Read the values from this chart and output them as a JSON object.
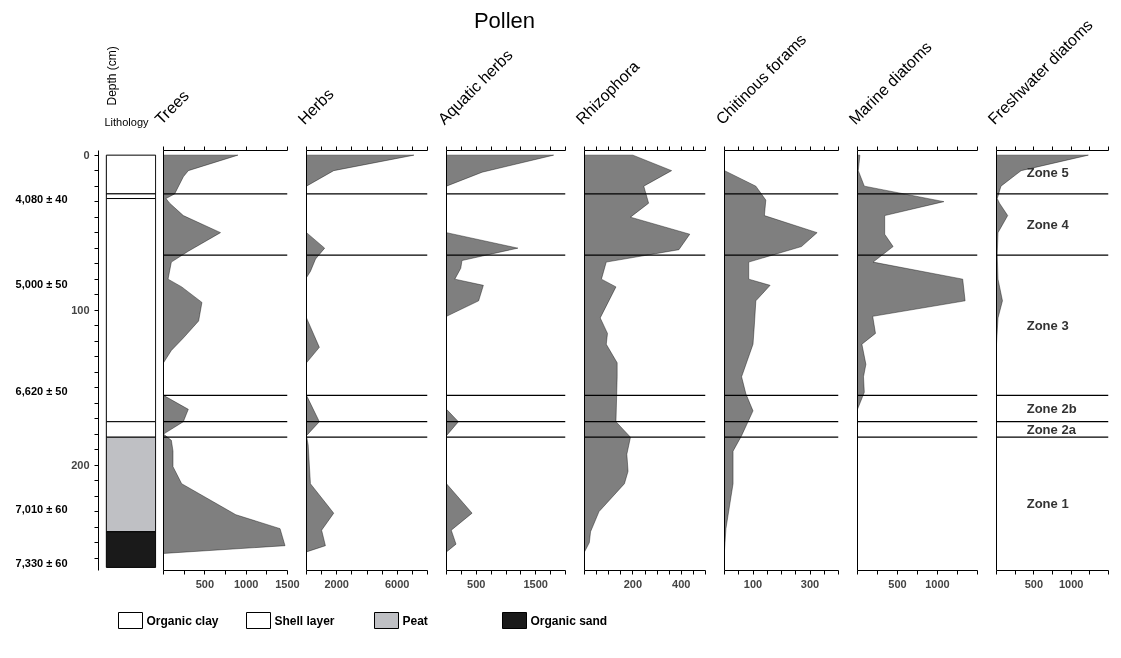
{
  "chart_data": [
    {
      "type": "bar",
      "stacked": true,
      "title": "Lithology",
      "ylabel": "Depth (cm)",
      "categories": [
        null
      ],
      "ylim": [
        268,
        -3
      ],
      "yticks": [
        0,
        {
          "value": 10,
          "label": null
        },
        {
          "value": 20,
          "label": null
        },
        {
          "value": 30,
          "label": null
        },
        {
          "value": 40,
          "label": null
        },
        {
          "value": 50,
          "label": null
        },
        {
          "value": 60,
          "label": null
        },
        {
          "value": 70,
          "label": null
        },
        {
          "value": 80,
          "label": null
        },
        {
          "value": 90,
          "label": null
        },
        100,
        {
          "value": 110,
          "label": null
        },
        {
          "value": 120,
          "label": null
        },
        {
          "value": 130,
          "label": null
        },
        {
          "value": 140,
          "label": null
        },
        {
          "value": 150,
          "label": null
        },
        {
          "value": 160,
          "label": null
        },
        {
          "value": 170,
          "label": null
        },
        {
          "value": 180,
          "label": null
        },
        {
          "value": 190,
          "label": null
        },
        200,
        {
          "value": 210,
          "label": null
        },
        {
          "value": 220,
          "label": null
        },
        {
          "value": 230,
          "label": null
        },
        {
          "value": 240,
          "label": null
        },
        {
          "value": 250,
          "label": null
        },
        {
          "value": 260,
          "label": null
        }
      ],
      "tick_labels": "y",
      "legend": "bottom",
      "series": [
        {
          "name": "Organic clay",
          "color": "#ffffff",
          "values": [
            25
          ]
        },
        {
          "name": "Shell layer",
          "color": "#ffffff",
          "values": [
            3
          ]
        },
        {
          "color": "#ffffff",
          "values": [
            144
          ]
        },
        {
          "color": "#ffffff",
          "values": [
            10
          ]
        },
        {
          "name": "Peat",
          "color": "#bfc0c4",
          "values": [
            61
          ]
        },
        {
          "name": "Organic sand",
          "color": "#1a1a1a",
          "values": [
            23
          ]
        }
      ],
      "annotations": [
        "4,080 ± 40",
        "5,000 ± 50",
        "6,620 ± 50",
        "7,010 ± 60",
        "7,330 ± 60"
      ]
    },
    {
      "type": "area",
      "orientation": "horizontal",
      "title": "Trees",
      "color": "#7f7f7f",
      "x": [
        0,
        10,
        14,
        25,
        28,
        31,
        39,
        50,
        62,
        69,
        80,
        85,
        95,
        107,
        118,
        126,
        134,
        155,
        164,
        172,
        180,
        184,
        191,
        201,
        212,
        232,
        241,
        252,
        257
      ],
      "values": [
        900,
        300,
        240,
        135,
        30,
        75,
        240,
        690,
        300,
        95,
        55,
        220,
        465,
        425,
        240,
        95,
        0,
        0,
        300,
        240,
        0,
        95,
        115,
        115,
        220,
        875,
        1410,
        1470,
        0
      ],
      "xlim": [
        0,
        1500
      ],
      "xticks": [
        {
          "value": 0,
          "label": null
        },
        {
          "value": 250,
          "label": null
        },
        500,
        {
          "value": 750,
          "label": null
        },
        1000,
        {
          "value": 1250,
          "label": null
        },
        1500
      ],
      "ylim": [
        268,
        -3
      ],
      "tick_labels": "x",
      "ref_lines": [
        {
          "axis": "y",
          "value": 25
        },
        {
          "axis": "y",
          "value": 64.5
        },
        {
          "axis": "y",
          "value": 155
        },
        {
          "axis": "y",
          "value": 172
        },
        {
          "axis": "y",
          "value": 182
        }
      ]
    },
    {
      "type": "area",
      "orientation": "horizontal",
      "title": "Herbs",
      "color": "#7f7f7f",
      "x": [
        0,
        10,
        20,
        50,
        60,
        67,
        75,
        79,
        105,
        124,
        134,
        155,
        172,
        181,
        187,
        212,
        231,
        242,
        252,
        256
      ],
      "values": [
        7100,
        1800,
        0,
        0,
        1200,
        600,
        260,
        0,
        0,
        850,
        0,
        0,
        850,
        0,
        110,
        260,
        1800,
        1000,
        1250,
        0
      ],
      "xlim": [
        0,
        8000
      ],
      "xticks": [
        {
          "value": 0,
          "label": null
        },
        {
          "value": 1000,
          "label": null
        },
        2000,
        {
          "value": 3000,
          "label": null
        },
        {
          "value": 4000,
          "label": null
        },
        {
          "value": 5000,
          "label": null
        },
        6000,
        {
          "value": 7000,
          "label": null
        },
        {
          "value": 8000,
          "label": null
        }
      ],
      "ylim": [
        268,
        -3
      ],
      "tick_labels": "x",
      "ref_lines": [
        {
          "axis": "y",
          "value": 25
        },
        {
          "axis": "y",
          "value": 64.5
        },
        {
          "axis": "y",
          "value": 155
        },
        {
          "axis": "y",
          "value": 172
        },
        {
          "axis": "y",
          "value": 182
        }
      ]
    },
    {
      "type": "area",
      "orientation": "horizontal",
      "title": "Aquatic herbs",
      "subtitle": "Pollen",
      "color": "#7f7f7f",
      "x": [
        0,
        11,
        20,
        50,
        60,
        68,
        73,
        80,
        84,
        94,
        104,
        164,
        172,
        181,
        212,
        231,
        242,
        251,
        256
      ],
      "values": [
        1800,
        600,
        0,
        0,
        1200,
        260,
        240,
        140,
        620,
        540,
        0,
        0,
        200,
        0,
        0,
        430,
        80,
        160,
        0
      ],
      "xlim": [
        0,
        2000
      ],
      "xticks": [
        {
          "value": 0,
          "label": null
        },
        {
          "value": 250,
          "label": null
        },
        500,
        {
          "value": 750,
          "label": null
        },
        {
          "value": 1000,
          "label": null
        },
        {
          "value": 1250,
          "label": null
        },
        1500,
        {
          "value": 1750,
          "label": null
        },
        {
          "value": 2000,
          "label": null
        }
      ],
      "ylim": [
        268,
        -3
      ],
      "tick_labels": "x",
      "ref_lines": [
        {
          "axis": "y",
          "value": 25
        },
        {
          "axis": "y",
          "value": 64.5
        },
        {
          "axis": "y",
          "value": 155
        },
        {
          "axis": "y",
          "value": 172
        },
        {
          "axis": "y",
          "value": 182
        }
      ]
    },
    {
      "type": "area",
      "orientation": "horizontal",
      "title": "Rhizophora",
      "color": "#7f7f7f",
      "x": [
        0,
        10,
        20,
        31,
        40,
        51,
        61,
        69,
        80,
        85,
        105,
        115,
        122,
        134,
        143,
        172,
        182,
        193,
        204,
        212,
        230,
        243,
        250,
        256
      ],
      "values": [
        200,
        360,
        245,
        265,
        190,
        435,
        390,
        90,
        70,
        130,
        65,
        95,
        90,
        135,
        135,
        130,
        190,
        175,
        180,
        165,
        60,
        25,
        20,
        0
      ],
      "xlim": [
        0,
        500
      ],
      "xticks": [
        {
          "value": 0,
          "label": null
        },
        {
          "value": 50,
          "label": null
        },
        {
          "value": 100,
          "label": null
        },
        {
          "value": 150,
          "label": null
        },
        200,
        {
          "value": 250,
          "label": null
        },
        {
          "value": 300,
          "label": null
        },
        {
          "value": 350,
          "label": null
        },
        400,
        {
          "value": 450,
          "label": null
        },
        {
          "value": 500,
          "label": null
        }
      ],
      "ylim": [
        268,
        -3
      ],
      "tick_labels": "x",
      "ref_lines": [
        {
          "axis": "y",
          "value": 25
        },
        {
          "axis": "y",
          "value": 64.5
        },
        {
          "axis": "y",
          "value": 155
        },
        {
          "axis": "y",
          "value": 172
        },
        {
          "axis": "y",
          "value": 182
        }
      ]
    },
    {
      "type": "area",
      "orientation": "horizontal",
      "title": "Chitinous forams",
      "color": "#7f7f7f",
      "x": [
        0,
        10,
        20,
        29,
        39,
        50,
        59,
        69,
        80,
        84,
        94,
        109,
        122,
        143,
        154,
        165,
        181,
        191,
        212,
        241,
        255
      ],
      "values": [
        0,
        0,
        110,
        145,
        140,
        325,
        270,
        85,
        85,
        160,
        110,
        105,
        100,
        60,
        75,
        100,
        60,
        30,
        30,
        5,
        0
      ],
      "xlim": [
        0,
        400
      ],
      "xticks": [
        {
          "value": 0,
          "label": null
        },
        {
          "value": 50,
          "label": null
        },
        100,
        {
          "value": 150,
          "label": null
        },
        {
          "value": 200,
          "label": null
        },
        {
          "value": 250,
          "label": null
        },
        300,
        {
          "value": 350,
          "label": null
        },
        {
          "value": 400,
          "label": null
        }
      ],
      "ylim": [
        268,
        -3
      ],
      "tick_labels": "x",
      "ref_lines": [
        {
          "axis": "y",
          "value": 25
        },
        {
          "axis": "y",
          "value": 64.5
        },
        {
          "axis": "y",
          "value": 155
        },
        {
          "axis": "y",
          "value": 172
        },
        {
          "axis": "y",
          "value": 182
        }
      ]
    },
    {
      "type": "area",
      "orientation": "horizontal",
      "title": "Marine diatoms",
      "color": "#7f7f7f",
      "x": [
        0,
        10,
        20,
        30,
        39,
        51,
        59,
        69,
        80,
        94,
        104,
        115,
        122,
        135,
        143,
        153,
        164
      ],
      "values": [
        30,
        10,
        85,
        1080,
        340,
        340,
        445,
        195,
        1315,
        1345,
        190,
        225,
        55,
        105,
        75,
        85,
        0
      ],
      "xlim": [
        0,
        1500
      ],
      "xticks": [
        {
          "value": 0,
          "label": null
        },
        {
          "value": 250,
          "label": null
        },
        500,
        {
          "value": 750,
          "label": null
        },
        1000,
        {
          "value": 1250,
          "label": null
        },
        {
          "value": 1500,
          "label": null
        }
      ],
      "ylim": [
        268,
        -3
      ],
      "tick_labels": "x",
      "ref_lines": [
        {
          "axis": "y",
          "value": 25
        },
        {
          "axis": "y",
          "value": 64.5
        },
        {
          "axis": "y",
          "value": 155
        },
        {
          "axis": "y",
          "value": 172
        },
        {
          "axis": "y",
          "value": 182
        }
      ]
    },
    {
      "type": "area",
      "orientation": "horizontal",
      "title": "Freshwater diatoms",
      "color": "#7f7f7f",
      "x": [
        0,
        10,
        20,
        28,
        31,
        39,
        50,
        64,
        80,
        94,
        105,
        122
      ],
      "values": [
        1230,
        330,
        60,
        10,
        40,
        150,
        20,
        10,
        20,
        80,
        20,
        0
      ],
      "xlim": [
        0,
        1500
      ],
      "xticks": [
        {
          "value": 0,
          "label": null
        },
        {
          "value": 250,
          "label": null
        },
        500,
        {
          "value": 750,
          "label": null
        },
        1000,
        {
          "value": 1250,
          "label": null
        },
        {
          "value": 1500,
          "label": null
        }
      ],
      "ylim": [
        268,
        -3
      ],
      "tick_labels": "x",
      "ref_lines": [
        {
          "axis": "y",
          "value": 25
        },
        {
          "axis": "y",
          "value": 64.5
        },
        {
          "axis": "y",
          "value": 155
        },
        {
          "axis": "y",
          "value": 172
        },
        {
          "axis": "y",
          "value": 182
        }
      ],
      "annotations": [
        "Zone 5",
        "Zone 4",
        "Zone 3",
        "Zone 2b",
        "Zone 2a",
        "Zone 1"
      ]
    }
  ]
}
